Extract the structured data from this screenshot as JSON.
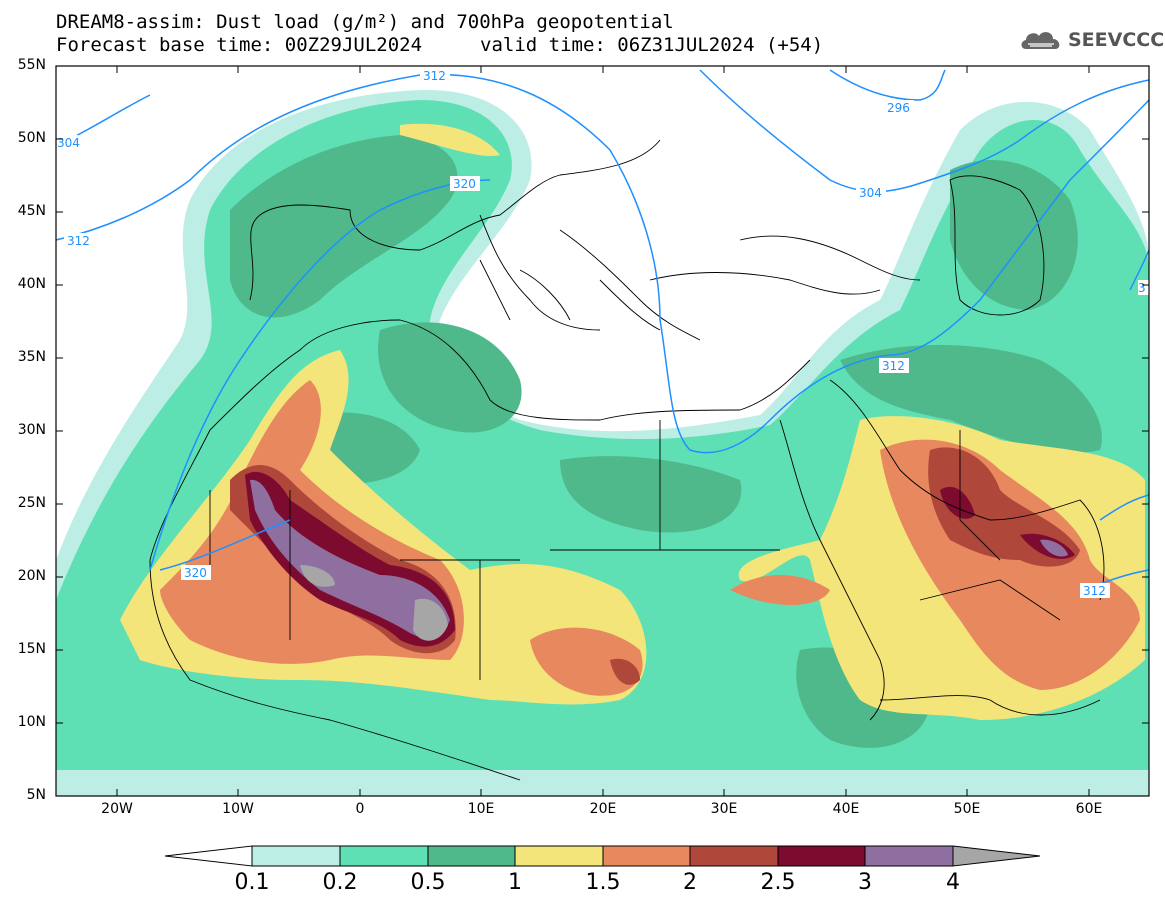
{
  "header": {
    "title_line1": "DREAM8-assim: Dust load (g/m²) and 700hPa geopotential",
    "title_line2": "Forecast base time: 00Z29JUL2024",
    "valid_time": "valid time: 06Z31JUL2024 (+54)",
    "logo_text": "SEEVCCC"
  },
  "axes": {
    "lat_labels": [
      "55N",
      "50N",
      "45N",
      "40N",
      "35N",
      "30N",
      "25N",
      "20N",
      "15N",
      "10N",
      "5N"
    ],
    "lon_labels": [
      "20W",
      "10W",
      "0",
      "10E",
      "20E",
      "30E",
      "40E",
      "50E",
      "60E"
    ]
  },
  "contour_labels": [
    "312",
    "304",
    "296",
    "304",
    "312",
    "320",
    "312",
    "320",
    "312",
    "312",
    "3"
  ],
  "colorbar": {
    "labels": [
      "0.1",
      "0.2",
      "0.5",
      "1",
      "1.5",
      "2",
      "2.5",
      "3",
      "4"
    ],
    "colors": [
      "#ffffff",
      "#bdeee5",
      "#5fe0b4",
      "#4fb98c",
      "#f4e57a",
      "#e8885f",
      "#b0473b",
      "#7d0a2f",
      "#8e6f9f",
      "#a6a6a6"
    ]
  },
  "palette": {
    "c01": "#bdeee5",
    "c02": "#5fe0b4",
    "c05": "#4fb98c",
    "c1": "#f4e57a",
    "c15": "#e8885f",
    "c2": "#b0473b",
    "c25": "#7d0a2f",
    "c3": "#8e6f9f",
    "c4": "#a6a6a6",
    "contour": "#1e90ff"
  }
}
